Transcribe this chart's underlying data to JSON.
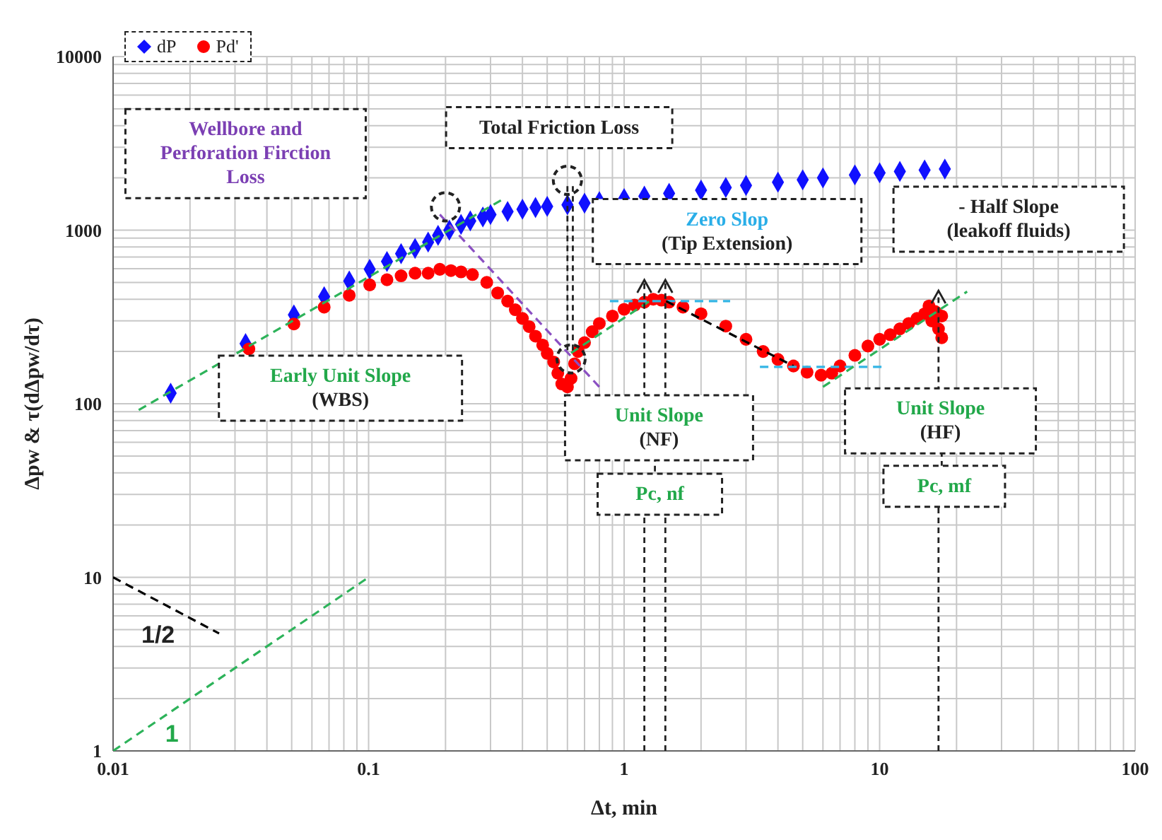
{
  "chart_data": {
    "type": "scatter",
    "xlabel": "Δt, min",
    "ylabel": "Δpw & τ(dΔpw/dτ)",
    "log": "xy",
    "grid": true,
    "legend": "top left",
    "xlim": [
      0.01,
      100
    ],
    "ylim": [
      1,
      10000
    ],
    "xticks": [
      0.01,
      {
        "value": 0.02,
        "label": null
      },
      {
        "value": 0.03,
        "label": null
      },
      {
        "value": 0.04,
        "label": null
      },
      {
        "value": 0.05,
        "label": null
      },
      {
        "value": 0.06,
        "label": null
      },
      {
        "value": 0.07,
        "label": null
      },
      {
        "value": 0.08,
        "label": null
      },
      {
        "value": 0.09,
        "label": null
      },
      0.1,
      {
        "value": 0.2,
        "label": null
      },
      {
        "value": 0.3,
        "label": null
      },
      {
        "value": 0.4,
        "label": null
      },
      {
        "value": 0.5,
        "label": null
      },
      {
        "value": 0.6,
        "label": null
      },
      {
        "value": 0.7,
        "label": null
      },
      {
        "value": 0.8,
        "label": null
      },
      {
        "value": 0.9,
        "label": null
      },
      1,
      {
        "value": 2,
        "label": null
      },
      {
        "value": 3,
        "label": null
      },
      {
        "value": 4,
        "label": null
      },
      {
        "value": 5,
        "label": null
      },
      {
        "value": 6,
        "label": null
      },
      {
        "value": 7,
        "label": null
      },
      {
        "value": 8,
        "label": null
      },
      {
        "value": 9,
        "label": null
      },
      10,
      {
        "value": 20,
        "label": null
      },
      {
        "value": 30,
        "label": null
      },
      {
        "value": 40,
        "label": null
      },
      {
        "value": 50,
        "label": null
      },
      {
        "value": 60,
        "label": null
      },
      {
        "value": 70,
        "label": null
      },
      {
        "value": 80,
        "label": null
      },
      {
        "value": 90,
        "label": null
      },
      100
    ],
    "yticks": [
      1,
      {
        "value": 2,
        "label": null
      },
      {
        "value": 3,
        "label": null
      },
      {
        "value": 4,
        "label": null
      },
      {
        "value": 5,
        "label": null
      },
      {
        "value": 6,
        "label": null
      },
      {
        "value": 7,
        "label": null
      },
      {
        "value": 8,
        "label": null
      },
      {
        "value": 9,
        "label": null
      },
      10,
      {
        "value": 20,
        "label": null
      },
      {
        "value": 30,
        "label": null
      },
      {
        "value": 40,
        "label": null
      },
      {
        "value": 50,
        "label": null
      },
      {
        "value": 60,
        "label": null
      },
      {
        "value": 70,
        "label": null
      },
      {
        "value": 80,
        "label": null
      },
      {
        "value": 90,
        "label": null
      },
      100,
      {
        "value": 200,
        "label": null
      },
      {
        "value": 300,
        "label": null
      },
      {
        "value": 400,
        "label": null
      },
      {
        "value": 500,
        "label": null
      },
      {
        "value": 600,
        "label": null
      },
      {
        "value": 700,
        "label": null
      },
      {
        "value": 800,
        "label": null
      },
      {
        "value": 900,
        "label": null
      },
      1000,
      {
        "value": 2000,
        "label": null
      },
      {
        "value": 3000,
        "label": null
      },
      {
        "value": 4000,
        "label": null
      },
      {
        "value": 5000,
        "label": null
      },
      {
        "value": 6000,
        "label": null
      },
      {
        "value": 7000,
        "label": null
      },
      {
        "value": 8000,
        "label": null
      },
      {
        "value": 9000,
        "label": null
      },
      10000
    ],
    "series": [
      {
        "name": "dP",
        "marker": "diamond",
        "color": "#1010ff",
        "x": [
          0.0168,
          0.033,
          0.051,
          0.067,
          0.084,
          0.101,
          0.118,
          0.134,
          0.152,
          0.171,
          0.187,
          0.207,
          0.23,
          0.25,
          0.28,
          0.3,
          0.35,
          0.4,
          0.45,
          0.5,
          0.6,
          0.7,
          0.8,
          1,
          1.2,
          1.5,
          2,
          2.5,
          3,
          4,
          5,
          6,
          8,
          10,
          12,
          15,
          18
        ],
        "values": [
          115,
          222,
          325,
          414,
          509,
          595,
          660,
          732,
          785,
          853,
          933,
          1000,
          1080,
          1130,
          1190,
          1230,
          1280,
          1320,
          1350,
          1370,
          1400,
          1430,
          1460,
          1520,
          1570,
          1630,
          1700,
          1760,
          1810,
          1890,
          1950,
          2000,
          2080,
          2140,
          2180,
          2220,
          2250
        ]
      },
      {
        "name": "Pd'",
        "marker": "circle",
        "color": "#ff0000",
        "x": [
          0.034,
          0.051,
          0.067,
          0.084,
          0.101,
          0.118,
          0.134,
          0.152,
          0.171,
          0.19,
          0.21,
          0.23,
          0.255,
          0.29,
          0.32,
          0.35,
          0.375,
          0.4,
          0.425,
          0.45,
          0.48,
          0.5,
          0.53,
          0.55,
          0.57,
          0.6,
          0.62,
          0.64,
          0.66,
          0.7,
          0.75,
          0.8,
          0.9,
          1,
          1.1,
          1.2,
          1.3,
          1.4,
          1.5,
          1.7,
          2,
          2.5,
          3,
          3.5,
          4,
          4.6,
          5.2,
          5.9,
          6.5,
          7,
          8,
          9,
          10,
          11,
          12,
          13,
          14,
          15,
          15.6,
          16,
          16.5,
          17,
          17.5,
          17.5
        ],
        "values": [
          207,
          288,
          360,
          421,
          484,
          518,
          546,
          565,
          565,
          595,
          585,
          575,
          555,
          500,
          435,
          390,
          348,
          310,
          278,
          245,
          218,
          195,
          174,
          150,
          130,
          125,
          140,
          170,
          200,
          225,
          260,
          290,
          320,
          350,
          370,
          385,
          400,
          395,
          385,
          360,
          330,
          280,
          235,
          200,
          180,
          165,
          152,
          146,
          150,
          165,
          190,
          215,
          235,
          250,
          270,
          290,
          310,
          330,
          366,
          300,
          340,
          270,
          240,
          320
        ]
      },
      {
        "type": "line",
        "marker": "none",
        "line_style": "dashed",
        "color": "#2db35a",
        "x": [
          0.0126,
          0.344
        ],
        "values": [
          92,
          1540
        ]
      },
      {
        "type": "line",
        "marker": "none",
        "line_style": "dashed",
        "color": "#8a4fc2",
        "x": [
          0.19,
          0.8
        ],
        "values": [
          1230,
          125
        ]
      },
      {
        "type": "line",
        "marker": "none",
        "line_style": "dashed",
        "color": "#2db35a",
        "x": [
          0.62,
          1.29
        ],
        "values": [
          196,
          400
        ]
      },
      {
        "type": "line",
        "marker": "none",
        "line_style": "dashed",
        "color": "#33b5e5",
        "x": [
          0.88,
          2.6
        ],
        "values": [
          390,
          390
        ]
      },
      {
        "type": "line",
        "marker": "none",
        "line_style": "dashed",
        "color": "#000000",
        "x": [
          1.46,
          4.6
        ],
        "values": [
          390,
          165
        ]
      },
      {
        "type": "line",
        "marker": "none",
        "line_style": "dashed",
        "color": "#33b5e5",
        "x": [
          3.4,
          10.3
        ],
        "values": [
          163,
          163
        ]
      },
      {
        "type": "line",
        "marker": "none",
        "line_style": "dashed",
        "color": "#2db35a",
        "x": [
          6,
          22
        ],
        "values": [
          125,
          443
        ]
      },
      {
        "type": "line",
        "marker": "none",
        "line_style": "dashed",
        "color": "#000000",
        "x": [
          0.01,
          0.026
        ],
        "values": [
          10,
          4.75
        ]
      },
      {
        "type": "line",
        "marker": "none",
        "line_style": "dashed",
        "color": "#2db35a",
        "x": [
          0.01,
          0.1
        ],
        "values": [
          1,
          10
        ]
      }
    ],
    "annotations": [
      "Wellbore and\nPerforation Firction\nLoss",
      "Total Friction Loss",
      "Zero Slop\n(Tip Extension)",
      "- Half Slope\n(leakoff fluids)",
      "Early Unit  Slope\n(WBS)",
      "Unit Slope\n(NF)",
      "Pc, nf",
      "Unit Slope\n(HF)",
      "Pc, mf",
      "1/2",
      "1"
    ]
  }
}
